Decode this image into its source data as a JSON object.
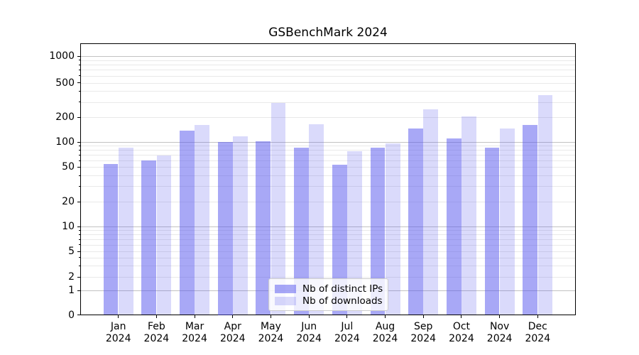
{
  "title": "GSBenchMark 2024",
  "colors": {
    "ips_fill": "rgba(82,82,238,0.50)",
    "downloads_fill": "rgba(82,82,238,0.21)",
    "ips_hex_on_white": "#a8a8f6",
    "downloads_hex_on_white": "#dadafb",
    "grid_major": "#c2c2c2",
    "grid_minor": "#e9e9e9",
    "axis": "#000000"
  },
  "legend": {
    "items": [
      {
        "id": "ips",
        "label": "Nb of distinct IPs"
      },
      {
        "id": "downloads",
        "label": "Nb of downloads"
      }
    ]
  },
  "chart_data": {
    "type": "bar",
    "title": "GSBenchMark 2024",
    "categories": [
      "Jan 2024",
      "Feb 2024",
      "Mar 2024",
      "Apr 2024",
      "May 2024",
      "Jun 2024",
      "Jul 2024",
      "Aug 2024",
      "Sep 2024",
      "Oct 2024",
      "Nov 2024",
      "Dec 2024"
    ],
    "series": [
      {
        "name": "Nb of distinct IPs",
        "values": [
          54,
          60,
          138,
          100,
          101,
          86,
          53,
          86,
          145,
          110,
          85,
          160
        ]
      },
      {
        "name": "Nb of downloads",
        "values": [
          85,
          69,
          162,
          117,
          290,
          165,
          77,
          97,
          245,
          205,
          147,
          360
        ]
      }
    ],
    "xlabel": "",
    "ylabel": "",
    "yscale": "symlog-like (0 then log decades)",
    "y_ticks": [
      0,
      1,
      2,
      5,
      10,
      20,
      50,
      100,
      200,
      500,
      1000
    ],
    "y_minor_ticks": [
      3,
      4,
      6,
      7,
      8,
      9,
      30,
      40,
      60,
      70,
      80,
      90,
      300,
      400,
      600,
      700,
      800,
      900
    ],
    "ylim": [
      0,
      1390
    ],
    "grid": true,
    "legend_position": "lower center"
  }
}
